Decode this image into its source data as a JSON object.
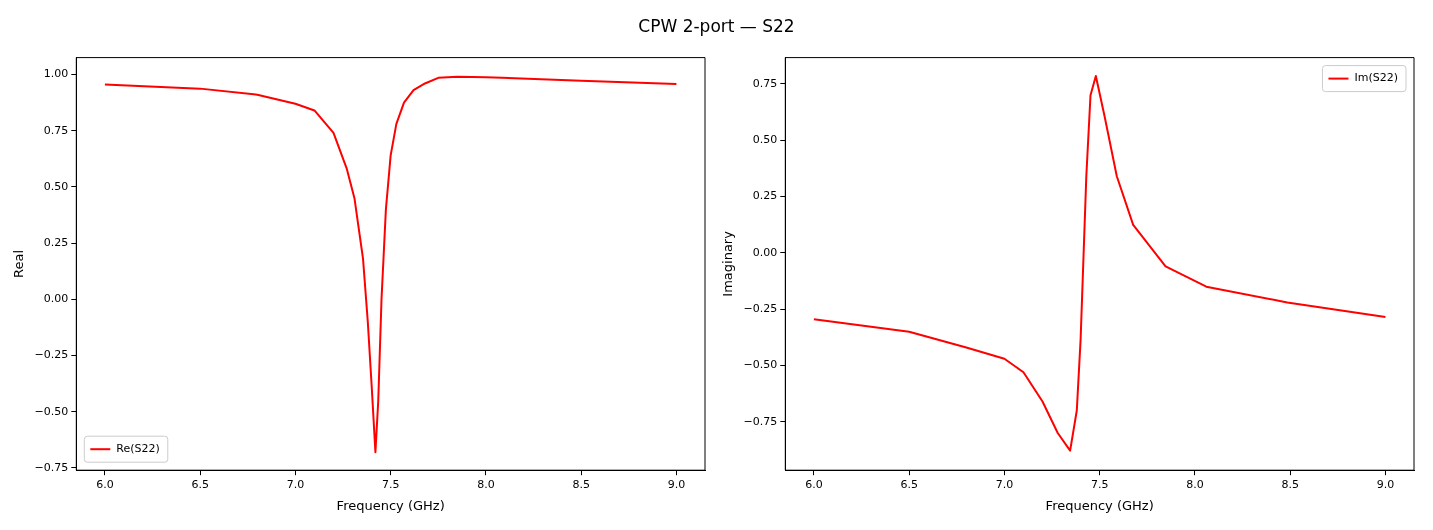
{
  "chart_data": [
    {
      "type": "line",
      "title": "CPW 2-port — S22",
      "xlabel": "Frequency (GHz)",
      "ylabel": "Real",
      "legend": "bottom left",
      "grid": false,
      "marker": "none",
      "line_style": "solid",
      "xlim": [
        5.85,
        9.15
      ],
      "xticks": [
        {
          "value": 6,
          "label": "6.0"
        },
        {
          "value": 6.5,
          "label": "6.5"
        },
        {
          "value": 7,
          "label": "7.0"
        },
        {
          "value": 7.5,
          "label": "7.5"
        },
        {
          "value": 8,
          "label": "8.0"
        },
        {
          "value": 8.5,
          "label": "8.5"
        },
        {
          "value": 9,
          "label": "9.0"
        }
      ],
      "ylim": [
        -0.76,
        1.075
      ],
      "yticks": [
        {
          "value": -0.75,
          "label": "−0.75"
        },
        {
          "value": -0.5,
          "label": "−0.50"
        },
        {
          "value": -0.25,
          "label": "−0.25"
        },
        {
          "value": 0,
          "label": "0.00"
        },
        {
          "value": 0.25,
          "label": "0.25"
        },
        {
          "value": 0.5,
          "label": "0.50"
        },
        {
          "value": 0.75,
          "label": "0.75"
        },
        {
          "value": 1,
          "label": "1.00"
        }
      ],
      "series": [
        {
          "name": "Re(S22)",
          "color": "#ff0000",
          "x": [
            6.0,
            6.5,
            6.8,
            7.0,
            7.1,
            7.2,
            7.27,
            7.31,
            7.355,
            7.38,
            7.4,
            7.42,
            7.435,
            7.452,
            7.475,
            7.5,
            7.53,
            7.57,
            7.62,
            7.68,
            7.75,
            7.85,
            8.0,
            8.5,
            9.0
          ],
          "values": [
            0.955,
            0.937,
            0.91,
            0.87,
            0.84,
            0.74,
            0.58,
            0.45,
            0.18,
            -0.1,
            -0.38,
            -0.68,
            -0.45,
            0.0,
            0.4,
            0.64,
            0.78,
            0.875,
            0.93,
            0.96,
            0.985,
            0.99,
            0.988,
            0.972,
            0.958
          ]
        }
      ]
    },
    {
      "type": "line",
      "xlabel": "Frequency (GHz)",
      "ylabel": "Imaginary",
      "legend": "top right",
      "grid": false,
      "marker": "none",
      "line_style": "solid",
      "xlim": [
        5.85,
        9.15
      ],
      "xticks": [
        {
          "value": 6,
          "label": "6.0"
        },
        {
          "value": 6.5,
          "label": "6.5"
        },
        {
          "value": 7,
          "label": "7.0"
        },
        {
          "value": 7.5,
          "label": "7.5"
        },
        {
          "value": 8,
          "label": "8.0"
        },
        {
          "value": 8.5,
          "label": "8.5"
        },
        {
          "value": 9,
          "label": "9.0"
        }
      ],
      "ylim": [
        -0.965,
        0.867
      ],
      "yticks": [
        {
          "value": -0.75,
          "label": "−0.75"
        },
        {
          "value": -0.5,
          "label": "−0.50"
        },
        {
          "value": -0.25,
          "label": "−0.25"
        },
        {
          "value": 0,
          "label": "0.00"
        },
        {
          "value": 0.25,
          "label": "0.25"
        },
        {
          "value": 0.5,
          "label": "0.50"
        },
        {
          "value": 0.75,
          "label": "0.75"
        }
      ],
      "series": [
        {
          "name": "Im(S22)",
          "color": "#ff0000",
          "x": [
            6.0,
            6.5,
            6.8,
            7.0,
            7.1,
            7.2,
            7.28,
            7.345,
            7.38,
            7.4,
            7.43,
            7.452,
            7.48,
            7.525,
            7.59,
            7.676,
            7.846,
            8.06,
            8.485,
            9.0
          ],
          "values": [
            -0.295,
            -0.35,
            -0.42,
            -0.47,
            -0.53,
            -0.66,
            -0.8,
            -0.878,
            -0.7,
            -0.385,
            0.34,
            0.7,
            0.785,
            0.61,
            0.34,
            0.124,
            -0.06,
            -0.15,
            -0.22,
            -0.285
          ]
        }
      ]
    }
  ]
}
